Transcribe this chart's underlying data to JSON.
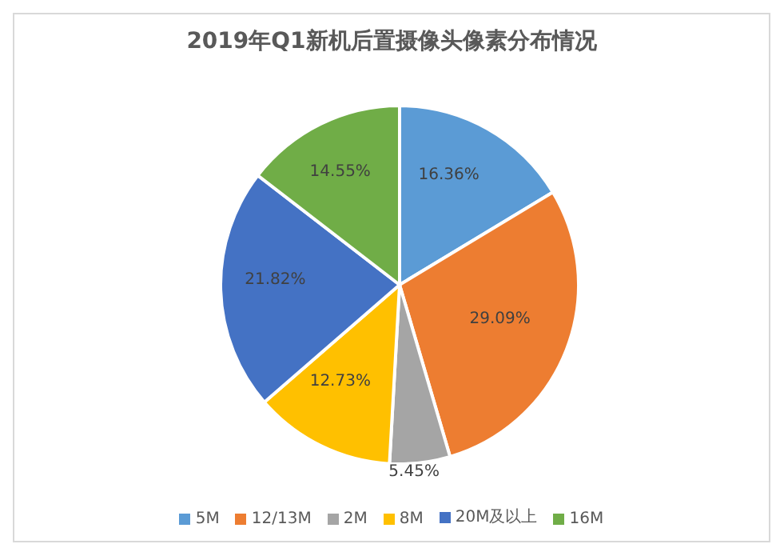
{
  "chart_data": {
    "type": "pie",
    "title": "2019年Q1新机后置摄像头像素分布情况",
    "categories": [
      "5M",
      "12/13M",
      "2M",
      "8M",
      "20M及以上",
      "16M"
    ],
    "values": [
      16.36,
      29.09,
      5.45,
      12.73,
      21.82,
      14.55
    ],
    "colors": [
      "#5b9bd5",
      "#ed7d31",
      "#a5a5a5",
      "#ffc000",
      "#4472c4",
      "#70ad47"
    ],
    "value_labels": [
      "16.36%",
      "29.09%",
      "5.45%",
      "12.73%",
      "21.82%",
      "14.55%"
    ],
    "legend": "bottom"
  }
}
